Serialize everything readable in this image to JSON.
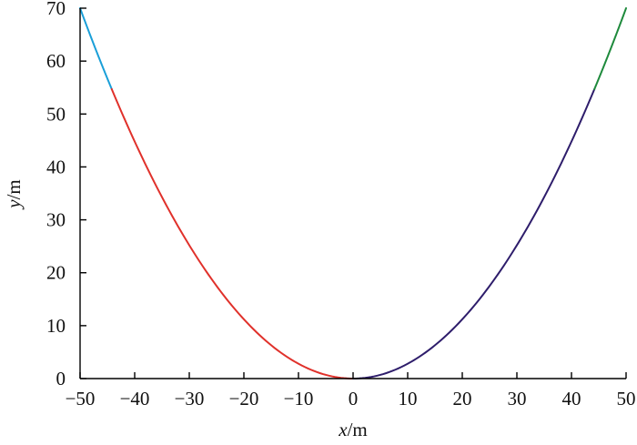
{
  "chart_data": {
    "type": "line",
    "title": "",
    "xlabel": {
      "var": "x",
      "unit": "/m"
    },
    "ylabel": {
      "var": "y",
      "unit": "/m"
    },
    "xlim": [
      -50,
      50
    ],
    "ylim": [
      0,
      70
    ],
    "x_ticks": [
      -50,
      -40,
      -30,
      -20,
      -10,
      0,
      10,
      20,
      30,
      40,
      50
    ],
    "x_tick_labels": [
      "−50",
      "−40",
      "−30",
      "−20",
      "−10",
      "0",
      "10",
      "20",
      "30",
      "40",
      "50"
    ],
    "y_ticks": [
      0,
      10,
      20,
      30,
      40,
      50,
      60,
      70
    ],
    "y_tick_labels": [
      "0",
      "10",
      "20",
      "30",
      "40",
      "50",
      "60",
      "70"
    ],
    "grid": false,
    "curve_function": "y = 0.028 * x^2",
    "series": [
      {
        "color": "#1a9fd8",
        "x_range": [
          -50,
          -44.2
        ],
        "x": [
          -50,
          -48,
          -46,
          -44.2
        ],
        "y": [
          70,
          64.5,
          59.2,
          54.7
        ]
      },
      {
        "color": "#e0312b",
        "x_range": [
          -44.2,
          0
        ],
        "x": [
          -44.2,
          -40,
          -30,
          -20,
          -10,
          0
        ],
        "y": [
          54.7,
          44.8,
          25.2,
          11.2,
          2.8,
          0
        ]
      },
      {
        "color": "#2e1d6b",
        "x_range": [
          0,
          44.2
        ],
        "x": [
          0,
          10,
          20,
          30,
          40,
          44.2
        ],
        "y": [
          0,
          2.8,
          11.2,
          25.2,
          44.8,
          54.7
        ]
      },
      {
        "color": "#1e8a3c",
        "x_range": [
          44.2,
          50
        ],
        "x": [
          44.2,
          46,
          48,
          50
        ],
        "y": [
          54.7,
          59.2,
          64.5,
          70
        ]
      }
    ]
  }
}
